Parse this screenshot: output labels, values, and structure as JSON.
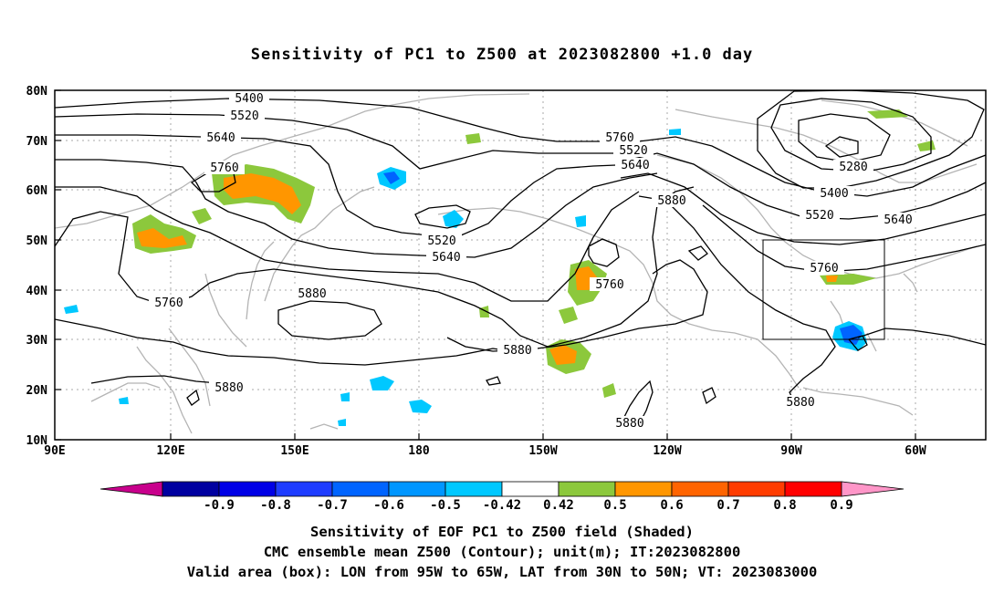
{
  "title": "Sensitivity of PC1 to Z500 at 2023082800 +1.0 day",
  "lat_labels": [
    "80N",
    "70N",
    "60N",
    "50N",
    "40N",
    "30N",
    "20N",
    "10N"
  ],
  "lon_labels": [
    "90E",
    "120E",
    "150E",
    "180",
    "150W",
    "120W",
    "90W",
    "60W"
  ],
  "contour_labels": [
    "5400",
    "5520",
    "5640",
    "5760",
    "5520",
    "5640",
    "5760",
    "5880",
    "5280",
    "5400",
    "5520",
    "5640",
    "5760",
    "5520",
    "5640",
    "5760",
    "5760",
    "5880",
    "5880",
    "5880",
    "5880",
    "5880"
  ],
  "colorbar": {
    "labels": [
      "-0.9",
      "-0.8",
      "-0.7",
      "-0.6",
      "-0.5",
      "-0.42",
      "0.42",
      "0.5",
      "0.6",
      "0.7",
      "0.8",
      "0.9"
    ],
    "colors": [
      "#c8008c",
      "#0000a0",
      "#0000e6",
      "#1e3cff",
      "#0064ff",
      "#0096ff",
      "#00c8ff",
      "#ffffff",
      "#8cc83c",
      "#ff9600",
      "#ff6400",
      "#ff3c00",
      "#ff0000",
      "#ff96c8"
    ]
  },
  "captions": {
    "line1": "Sensitivity of EOF PC1 to Z500 field (Shaded)",
    "line2": "CMC ensemble mean Z500 (Contour); unit(m); IT:2023082800",
    "line3": "Valid area (box): LON from 95W to 65W, LAT from 30N to 50N; VT: 2023083000"
  },
  "valid_area_box": {
    "lon_west": "95W",
    "lon_east": "65W",
    "lat_south": "30N",
    "lat_north": "50N"
  }
}
